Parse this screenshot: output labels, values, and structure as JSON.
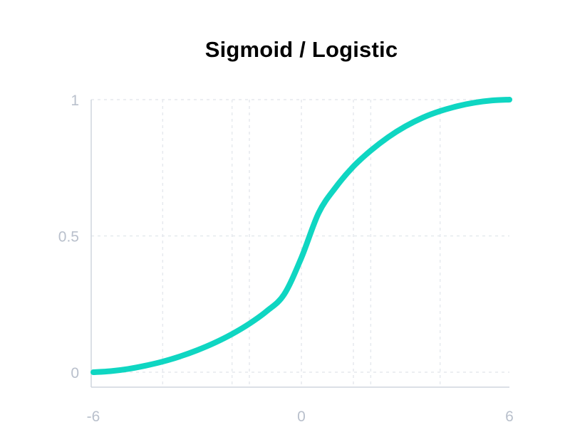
{
  "chart_data": {
    "type": "line",
    "title": "Sigmoid / Logistic",
    "xlabel": "",
    "ylabel": "",
    "xlim": [
      -6,
      6
    ],
    "ylim": [
      0,
      1
    ],
    "x_ticks": [
      -6,
      0,
      6
    ],
    "x_tick_labels": [
      "-6",
      "0",
      "6"
    ],
    "y_ticks": [
      0,
      0.5,
      1
    ],
    "y_tick_labels": [
      "0",
      "0.5",
      "1"
    ],
    "grid": true,
    "legend": "none",
    "series": [
      {
        "color": "#0fd6c2",
        "x": [
          -6,
          -5.5,
          -5,
          -4.5,
          -4,
          -3.5,
          -3,
          -2.5,
          -2,
          -1.5,
          -1,
          -0.5,
          0,
          0.5,
          1,
          1.5,
          2,
          2.5,
          3,
          3.5,
          4,
          4.5,
          5,
          5.5,
          6
        ],
        "y": [
          0.0,
          0.004,
          0.012,
          0.024,
          0.039,
          0.058,
          0.081,
          0.108,
          0.14,
          0.178,
          0.224,
          0.285,
          0.42,
          0.585,
          0.68,
          0.755,
          0.813,
          0.862,
          0.902,
          0.934,
          0.958,
          0.976,
          0.989,
          0.997,
          1.0
        ]
      }
    ]
  }
}
